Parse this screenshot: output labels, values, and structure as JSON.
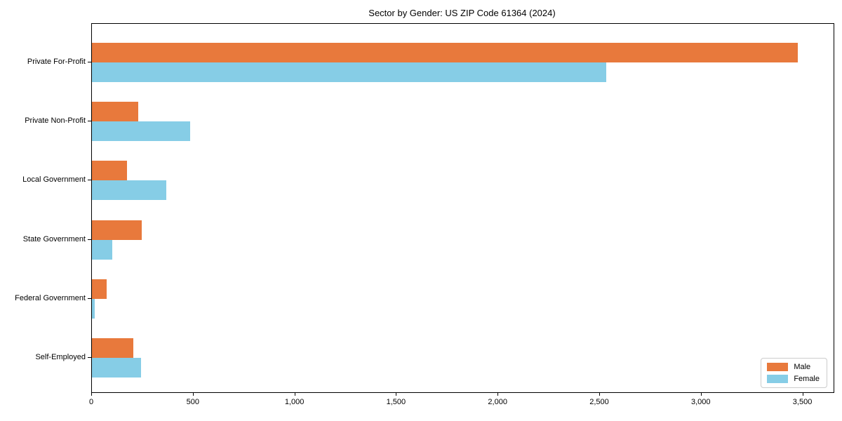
{
  "title": "Sector by Gender: US ZIP Code 61364 (2024)",
  "chart_data": {
    "type": "bar",
    "orientation": "horizontal",
    "title": "Sector by Gender: US ZIP Code 61364 (2024)",
    "xlabel": "",
    "ylabel": "",
    "categories": [
      "Private For-Profit",
      "Private Non-Profit",
      "Local Government",
      "State Government",
      "Federal Government",
      "Self-Employed"
    ],
    "series": [
      {
        "name": "Male",
        "color": "#e8793c",
        "values": [
          3475,
          227,
          173,
          245,
          73,
          205
        ]
      },
      {
        "name": "Female",
        "color": "#86cde6",
        "values": [
          2530,
          484,
          366,
          101,
          14,
          242
        ]
      }
    ],
    "xlim": [
      0,
      3650
    ],
    "xticks": [
      0,
      500,
      1000,
      1500,
      2000,
      2500,
      3000,
      3500
    ],
    "xtick_labels": [
      "0",
      "500",
      "1,000",
      "1,500",
      "2,000",
      "2,500",
      "3,000",
      "3,500"
    ],
    "grid": false,
    "legend_position": "lower right",
    "background_color": "#ffffff",
    "spine_color": "#000000"
  }
}
